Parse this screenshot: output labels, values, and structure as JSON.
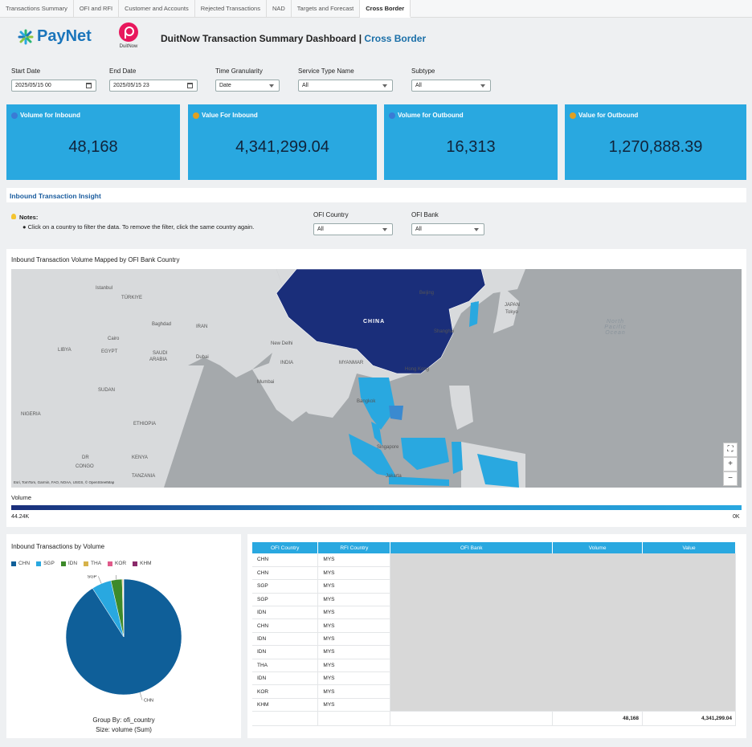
{
  "tabs": [
    {
      "label": "Transactions Summary",
      "active": false
    },
    {
      "label": "OFI and RFI",
      "active": false
    },
    {
      "label": "Customer and Accounts",
      "active": false
    },
    {
      "label": "Rejected Transactions",
      "active": false
    },
    {
      "label": "NAD",
      "active": false
    },
    {
      "label": "Targets and Forecast",
      "active": false
    },
    {
      "label": "Cross Border",
      "active": true
    }
  ],
  "header": {
    "paynet_logo": "PayNet",
    "duitnow_logo": "DuitNow",
    "title_main": "DuitNow Transaction Summary Dashboard |",
    "title_sub": "Cross Border"
  },
  "filters": {
    "start_date": {
      "label": "Start Date",
      "value": "2025/05/15 00"
    },
    "end_date": {
      "label": "End Date",
      "value": "2025/05/15 23"
    },
    "granularity": {
      "label": "Time Granularity",
      "value": "Date"
    },
    "service_type": {
      "label": "Service Type Name",
      "value": "All"
    },
    "subtype": {
      "label": "Subtype",
      "value": "All"
    }
  },
  "kpis": [
    {
      "label": "Volume for Inbound",
      "value": "48,168",
      "icon": "globe-icon"
    },
    {
      "label": "Value For Inbound",
      "value": "4,341,299.04",
      "icon": "money-bag-icon"
    },
    {
      "label": "Volume for Outbound",
      "value": "16,313",
      "icon": "globe-icon"
    },
    {
      "label": "Value for Outbound",
      "value": "1,270,888.39",
      "icon": "money-bag-icon"
    }
  ],
  "insight": {
    "section_title": "Inbound Transaction Insight",
    "notes_label": "Notes:",
    "notes_text": "● Click on a country to filter the data. To remove the filter, click the same country again.",
    "ofi_country": {
      "label": "OFI Country",
      "value": "All"
    },
    "ofi_bank": {
      "label": "OFI Bank",
      "value": "All"
    }
  },
  "map": {
    "title": "Inbound Transaction Volume Mapped by OFI Bank Country",
    "attribution": "Esri, TomTom, Garmin, FAO, NOAA, USGS, © OpenStreetMap",
    "country_label": "CHINA",
    "cities": [
      "Istanbul",
      "TÜRKIYE",
      "Baghdad",
      "IRAN",
      "Cairo",
      "LIBYA",
      "EGYPT",
      "SAUDI",
      "ARABIA",
      "Dubai",
      "New Delhi",
      "INDIA",
      "Mumbai",
      "MYANMAR",
      "Bangkok",
      "Hong Kong",
      "Beijing",
      "Shanghai",
      "Tokyo",
      "JAPAN",
      "SUDAN",
      "NIGERIA",
      "ETHIOPIA",
      "CONGO",
      "DR",
      "KENYA",
      "TANZANIA",
      "Singapore",
      "Jakarta"
    ],
    "ocean": [
      "North",
      "Pacific",
      "Ocean"
    ],
    "legend_title": "Volume",
    "legend_min": "44.24K",
    "legend_max": "0K"
  },
  "pie": {
    "title": "Inbound Transactions by Volume",
    "legend": [
      {
        "name": "CHN",
        "color": "#0f5f99"
      },
      {
        "name": "SGP",
        "color": "#29a8e0"
      },
      {
        "name": "IDN",
        "color": "#3d8a2a"
      },
      {
        "name": "THA",
        "color": "#d6b24a"
      },
      {
        "name": "KOR",
        "color": "#e05a8a"
      },
      {
        "name": "KHM",
        "color": "#8a2a6a"
      }
    ],
    "group_by": "Group By: ofi_country",
    "size": "Size: volume (Sum)"
  },
  "chart_data": {
    "type": "pie",
    "categories": [
      "CHN",
      "SGP",
      "IDN",
      "THA",
      "KOR",
      "KHM"
    ],
    "values": [
      43800,
      2650,
      1500,
      120,
      60,
      38
    ]
  },
  "table": {
    "headers": [
      "OFI Country",
      "RFI Country",
      "OFI Bank",
      "Volume",
      "Value"
    ],
    "rows": [
      [
        "CHN",
        "MYS"
      ],
      [
        "CHN",
        "MYS"
      ],
      [
        "SGP",
        "MYS"
      ],
      [
        "SGP",
        "MYS"
      ],
      [
        "IDN",
        "MYS"
      ],
      [
        "CHN",
        "MYS"
      ],
      [
        "IDN",
        "MYS"
      ],
      [
        "IDN",
        "MYS"
      ],
      [
        "THA",
        "MYS"
      ],
      [
        "IDN",
        "MYS"
      ],
      [
        "KOR",
        "MYS"
      ],
      [
        "KHM",
        "MYS"
      ]
    ],
    "total_volume": "48,168",
    "total_value": "4,341,299.04"
  }
}
